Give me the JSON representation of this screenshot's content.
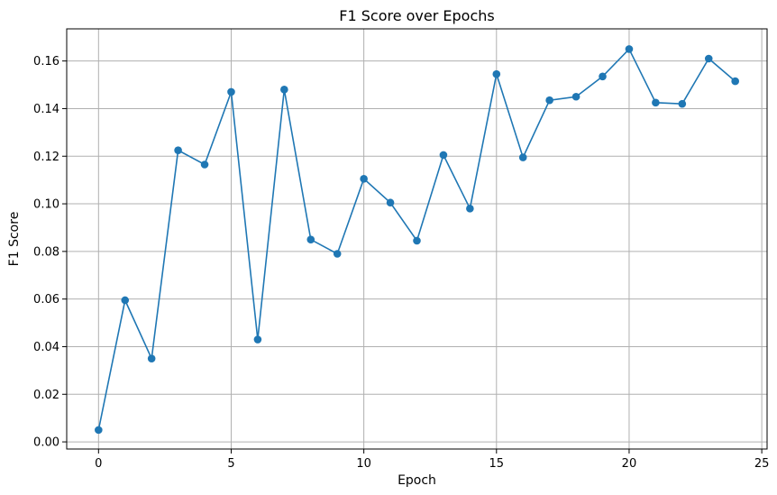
{
  "chart_data": {
    "type": "line",
    "title": "F1 Score over Epochs",
    "xlabel": "Epoch",
    "ylabel": "F1 Score",
    "xlim": [
      -1.2,
      25.2
    ],
    "ylim": [
      -0.003,
      0.1735
    ],
    "xticks": [
      0,
      5,
      10,
      15,
      20,
      25
    ],
    "yticks": [
      0.0,
      0.02,
      0.04,
      0.06,
      0.08,
      0.1,
      0.12,
      0.14,
      0.16
    ],
    "xtick_labels": [
      "0",
      "5",
      "10",
      "15",
      "20",
      "25"
    ],
    "ytick_labels": [
      "0.00",
      "0.02",
      "0.04",
      "0.06",
      "0.08",
      "0.10",
      "0.12",
      "0.14",
      "0.16"
    ],
    "grid": true,
    "marker": "circle",
    "line_color": "#1f77b4",
    "x": [
      0,
      1,
      2,
      3,
      4,
      5,
      6,
      7,
      8,
      9,
      10,
      11,
      12,
      13,
      14,
      15,
      16,
      17,
      18,
      19,
      20,
      21,
      22,
      23,
      24
    ],
    "y": [
      0.005,
      0.0595,
      0.035,
      0.1225,
      0.1165,
      0.147,
      0.043,
      0.148,
      0.085,
      0.079,
      0.1105,
      0.1005,
      0.0845,
      0.1205,
      0.098,
      0.1545,
      0.1195,
      0.1435,
      0.145,
      0.1535,
      0.165,
      0.1425,
      0.142,
      0.161,
      0.1515
    ]
  }
}
